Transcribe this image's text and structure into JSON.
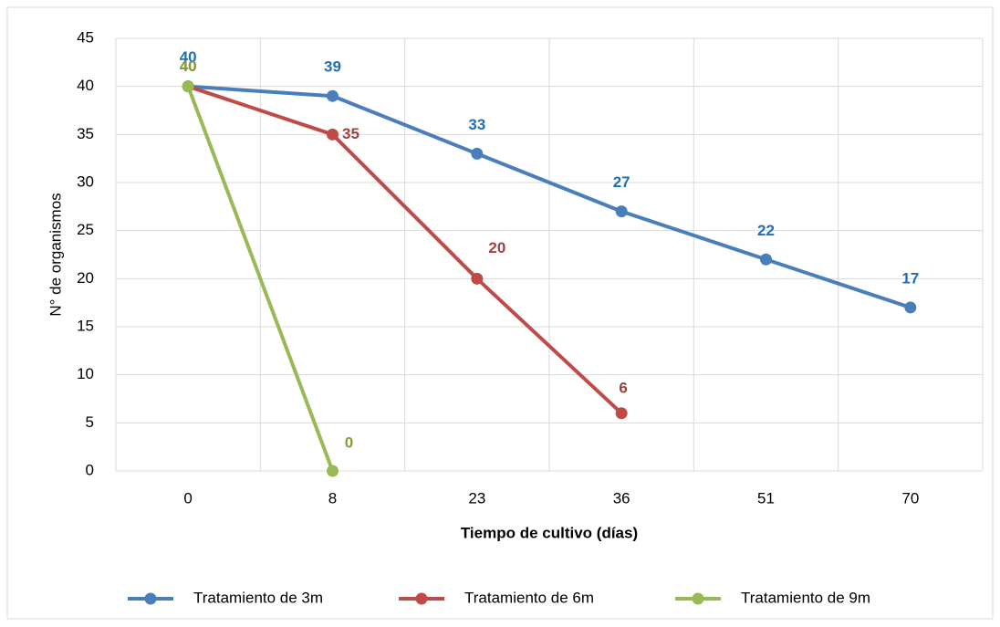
{
  "chart_data": {
    "type": "line",
    "xlabel": "Tiempo de cultivo (días)",
    "ylabel": "N° de organismos",
    "categories": [
      "0",
      "8",
      "23",
      "36",
      "51",
      "70"
    ],
    "series": [
      {
        "name": "Tratamiento de 3m",
        "color": "#4a7ebb",
        "label_color": "#1f6fb5",
        "values": [
          40,
          39,
          33,
          27,
          22,
          17
        ]
      },
      {
        "name": "Tratamiento de 6m",
        "color": "#be4b48",
        "label_color": "#a0403c",
        "values": [
          40,
          35,
          20,
          6,
          null,
          null
        ]
      },
      {
        "name": "Tratamiento de 9m",
        "color": "#98b954",
        "label_color": "#7f9e3e",
        "values": [
          40,
          0,
          null,
          null,
          null,
          null
        ]
      }
    ],
    "ylim": [
      0,
      45
    ],
    "yticks": [
      0,
      5,
      10,
      15,
      20,
      25,
      30,
      35,
      40,
      45
    ],
    "grid": true,
    "legend": "bottom"
  }
}
